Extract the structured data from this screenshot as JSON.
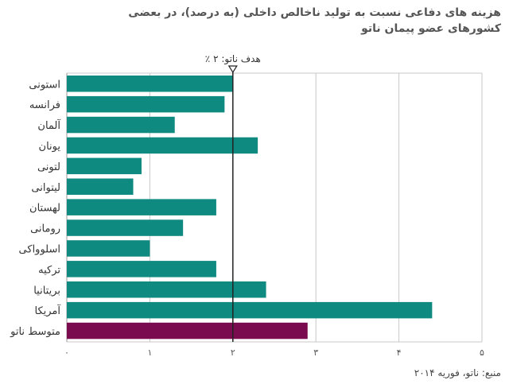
{
  "title_line1": "هزینه های دفاعی نسبت به تولید ناخالص داخلی (به درصد)، در بعضی",
  "title_line2": "کشورهای عضو پیمان ناتو",
  "source": "منبع: ناتو، فوریه ۲۰۱۴",
  "colors": {
    "bar": "#0f8a80",
    "highlight": "#7a0b4e",
    "grid": "#c8c8c8",
    "target": "#222222"
  },
  "chart_data": {
    "type": "bar",
    "orientation": "horizontal",
    "title": "هزینه های دفاعی نسبت به تولید ناخالص داخلی (به درصد)، در بعضی کشورهای عضو پیمان ناتو",
    "categories": [
      "استونی",
      "فرانسه",
      "آلمان",
      "یونان",
      "لتونی",
      "لیتوانی",
      "لهستان",
      "رومانی",
      "اسلوواکی",
      "ترکیه",
      "بریتانیا",
      "آمریکا",
      "متوسط ناتو"
    ],
    "values": [
      2.0,
      1.9,
      1.3,
      2.3,
      0.9,
      0.8,
      1.8,
      1.4,
      1.0,
      1.8,
      2.4,
      4.4,
      2.9
    ],
    "highlight": [
      "متوسط ناتو"
    ],
    "xlim": [
      0,
      5
    ],
    "xticks": [
      "۰",
      "۱",
      "۲",
      "۳",
      "۴",
      "۵"
    ],
    "xlabel": "",
    "ylabel": "",
    "grid": true,
    "target_line": {
      "value": 2,
      "label": "هدف ناتو: ۲ ٪"
    }
  }
}
